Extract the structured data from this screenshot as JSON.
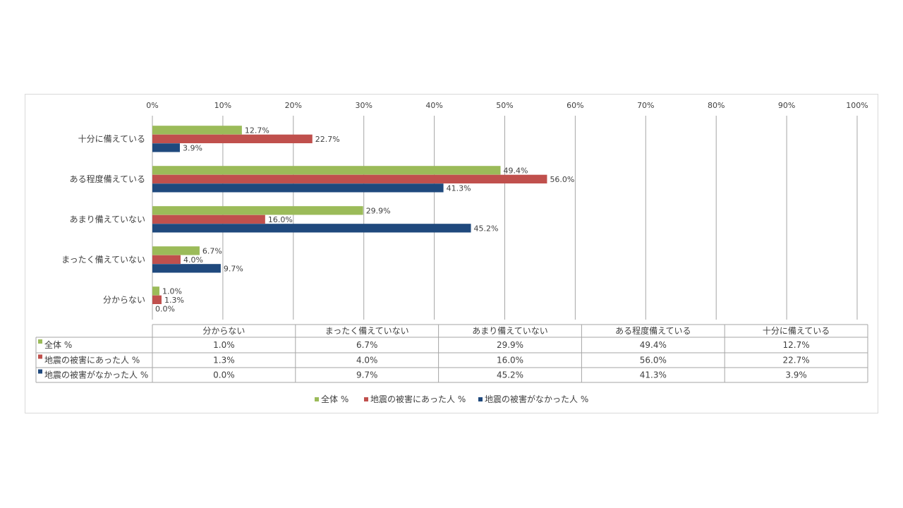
{
  "chart_data": {
    "type": "bar",
    "orientation": "horizontal",
    "categories": [
      "十分に備えている",
      "ある程度備えている",
      "あまり備えていない",
      "まったく備えていない",
      "分からない"
    ],
    "table_categories": [
      "分からない",
      "まったく備えていない",
      "あまり備えていない",
      "ある程度備えている",
      "十分に備えている"
    ],
    "series": [
      {
        "name": "全体 %",
        "color": "#9bbb59",
        "values": {
          "十分に備えている": 12.7,
          "ある程度備えている": 49.4,
          "あまり備えていない": 29.9,
          "まったく備えていない": 6.7,
          "分からない": 1.0
        }
      },
      {
        "name": "地震の被害にあった人 %",
        "color": "#c0504d",
        "values": {
          "十分に備えている": 22.7,
          "ある程度備えている": 56.0,
          "あまり備えていない": 16.0,
          "まったく備えていない": 4.0,
          "分からない": 1.3
        }
      },
      {
        "name": "地震の被害がなかった人 %",
        "color": "#1f497d",
        "values": {
          "十分に備えている": 3.9,
          "ある程度備えている": 41.3,
          "あまり備えていない": 45.2,
          "まったく備えていない": 9.7,
          "分からない": 0.0
        }
      }
    ],
    "xlim": [
      0,
      100
    ],
    "x_ticks": [
      "0%",
      "10%",
      "20%",
      "30%",
      "40%",
      "50%",
      "60%",
      "70%",
      "80%",
      "90%",
      "100%"
    ],
    "axis_position": "top",
    "grid": true,
    "data_labels": true,
    "data_table": true,
    "legend_position": "bottom"
  }
}
